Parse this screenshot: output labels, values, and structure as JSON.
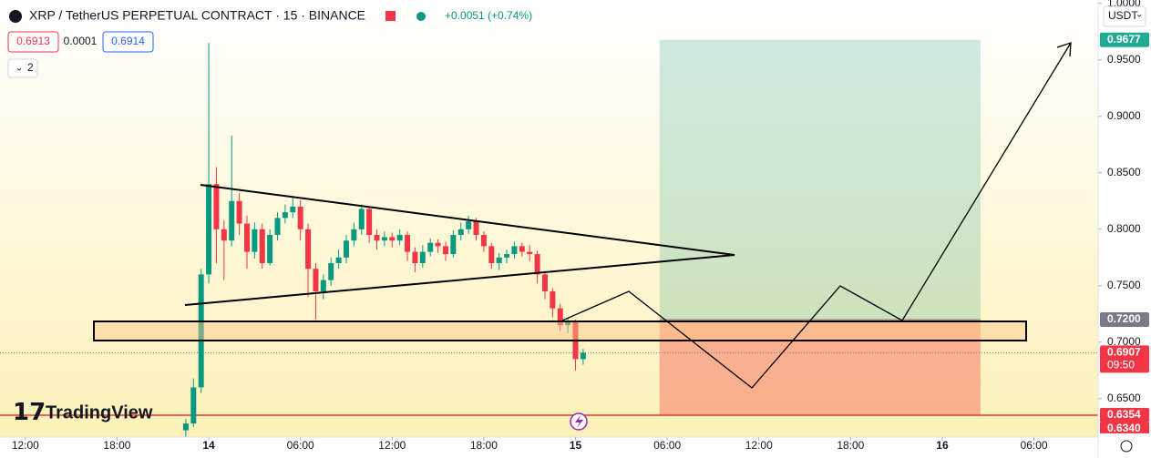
{
  "header": {
    "symbol_title": "XRP / TetherUS PERPETUAL CONTRACT · 15 · BINANCE",
    "change": "+0.0051 (+0.74%)",
    "bid": "0.6913",
    "spread": "0.0001",
    "ask": "0.6914",
    "indicator_count": "2",
    "currency": "USDT"
  },
  "logo": "TradingView",
  "chart_data": {
    "type": "candlestick",
    "x": [
      -1.5,
      -1,
      -0.5,
      0,
      0.5,
      1,
      1.5,
      2,
      2.5,
      3,
      3.5,
      4,
      4.5,
      5,
      5.5,
      6,
      6.5,
      7,
      7.5,
      8,
      8.5,
      9,
      9.5,
      10,
      10.5,
      11,
      11.5,
      12,
      12.5,
      13,
      13.5,
      14,
      14.5,
      15,
      15.5,
      16,
      16.5,
      17,
      17.5,
      18,
      18.5,
      19,
      19.5,
      20,
      20.5,
      21,
      21.5,
      22,
      22.5,
      23,
      23.5,
      24,
      24.5
    ],
    "open": [
      0.622,
      0.628,
      0.66,
      0.76,
      0.84,
      0.8,
      0.79,
      0.825,
      0.805,
      0.78,
      0.8,
      0.77,
      0.795,
      0.81,
      0.815,
      0.82,
      0.8,
      0.765,
      0.745,
      0.755,
      0.77,
      0.775,
      0.79,
      0.8,
      0.818,
      0.795,
      0.79,
      0.793,
      0.79,
      0.795,
      0.78,
      0.77,
      0.78,
      0.788,
      0.785,
      0.778,
      0.795,
      0.8,
      0.807,
      0.795,
      0.785,
      0.77,
      0.775,
      0.778,
      0.785,
      0.78,
      0.778,
      0.76,
      0.745,
      0.73,
      0.715,
      0.718,
      0.685
    ],
    "high": [
      0.632,
      0.668,
      0.765,
      0.965,
      0.855,
      0.808,
      0.883,
      0.832,
      0.812,
      0.806,
      0.805,
      0.8,
      0.815,
      0.822,
      0.828,
      0.826,
      0.805,
      0.77,
      0.76,
      0.775,
      0.782,
      0.795,
      0.806,
      0.822,
      0.82,
      0.8,
      0.798,
      0.797,
      0.8,
      0.798,
      0.784,
      0.786,
      0.792,
      0.791,
      0.789,
      0.799,
      0.806,
      0.812,
      0.81,
      0.798,
      0.788,
      0.779,
      0.782,
      0.789,
      0.788,
      0.786,
      0.781,
      0.763,
      0.748,
      0.734,
      0.722,
      0.72,
      0.694
    ],
    "low": [
      0.612,
      0.625,
      0.655,
      0.752,
      0.77,
      0.755,
      0.785,
      0.795,
      0.765,
      0.774,
      0.765,
      0.768,
      0.79,
      0.805,
      0.81,
      0.79,
      0.74,
      0.72,
      0.738,
      0.75,
      0.765,
      0.77,
      0.785,
      0.795,
      0.788,
      0.782,
      0.785,
      0.784,
      0.786,
      0.772,
      0.762,
      0.766,
      0.776,
      0.779,
      0.772,
      0.775,
      0.79,
      0.796,
      0.79,
      0.78,
      0.765,
      0.764,
      0.77,
      0.774,
      0.776,
      0.772,
      0.752,
      0.738,
      0.722,
      0.71,
      0.708,
      0.675,
      0.68
    ],
    "close": [
      0.628,
      0.66,
      0.76,
      0.84,
      0.8,
      0.79,
      0.825,
      0.805,
      0.78,
      0.8,
      0.77,
      0.795,
      0.81,
      0.815,
      0.82,
      0.8,
      0.765,
      0.745,
      0.755,
      0.77,
      0.775,
      0.79,
      0.8,
      0.818,
      0.795,
      0.79,
      0.793,
      0.79,
      0.795,
      0.78,
      0.77,
      0.78,
      0.788,
      0.785,
      0.778,
      0.795,
      0.8,
      0.807,
      0.795,
      0.785,
      0.77,
      0.775,
      0.778,
      0.785,
      0.78,
      0.778,
      0.76,
      0.745,
      0.73,
      0.715,
      0.718,
      0.685,
      0.6907
    ],
    "up_color": "#089981",
    "down_color": "#f23645",
    "xlim": [
      -13.66,
      58.2
    ],
    "xticks": [
      {
        "value": -12,
        "label": "12:00"
      },
      {
        "value": -6,
        "label": "18:00"
      },
      {
        "value": 0,
        "label": "14"
      },
      {
        "value": 6,
        "label": "06:00"
      },
      {
        "value": 12,
        "label": "12:00"
      },
      {
        "value": 18,
        "label": "18:00"
      },
      {
        "value": 24,
        "label": "15"
      },
      {
        "value": 30,
        "label": "06:00"
      },
      {
        "value": 36,
        "label": "12:00"
      },
      {
        "value": 42,
        "label": "18:00"
      },
      {
        "value": 48,
        "label": "16"
      },
      {
        "value": 54,
        "label": "06:00"
      }
    ],
    "ylim": [
      0.616,
      1.003
    ],
    "yticks": [
      {
        "value": 1.0,
        "label": "1.0000"
      },
      {
        "value": 0.95,
        "label": "0.9500"
      },
      {
        "value": 0.9,
        "label": "0.9000"
      },
      {
        "value": 0.85,
        "label": "0.8500"
      },
      {
        "value": 0.8,
        "label": "0.8000"
      },
      {
        "value": 0.75,
        "label": "0.7500"
      },
      {
        "value": 0.7,
        "label": "0.7000"
      },
      {
        "value": 0.65,
        "label": "0.6500"
      }
    ],
    "last_price": 0.6907,
    "countdown": "09:50",
    "position": {
      "target": 0.9677,
      "entry": {
        "value": 0.72,
        "label": "0.7200"
      },
      "stop": 0.6354,
      "start_x": 29.5,
      "end_x": 50.5
    },
    "low_label": {
      "value": 0.634,
      "label": "0.6340"
    }
  }
}
